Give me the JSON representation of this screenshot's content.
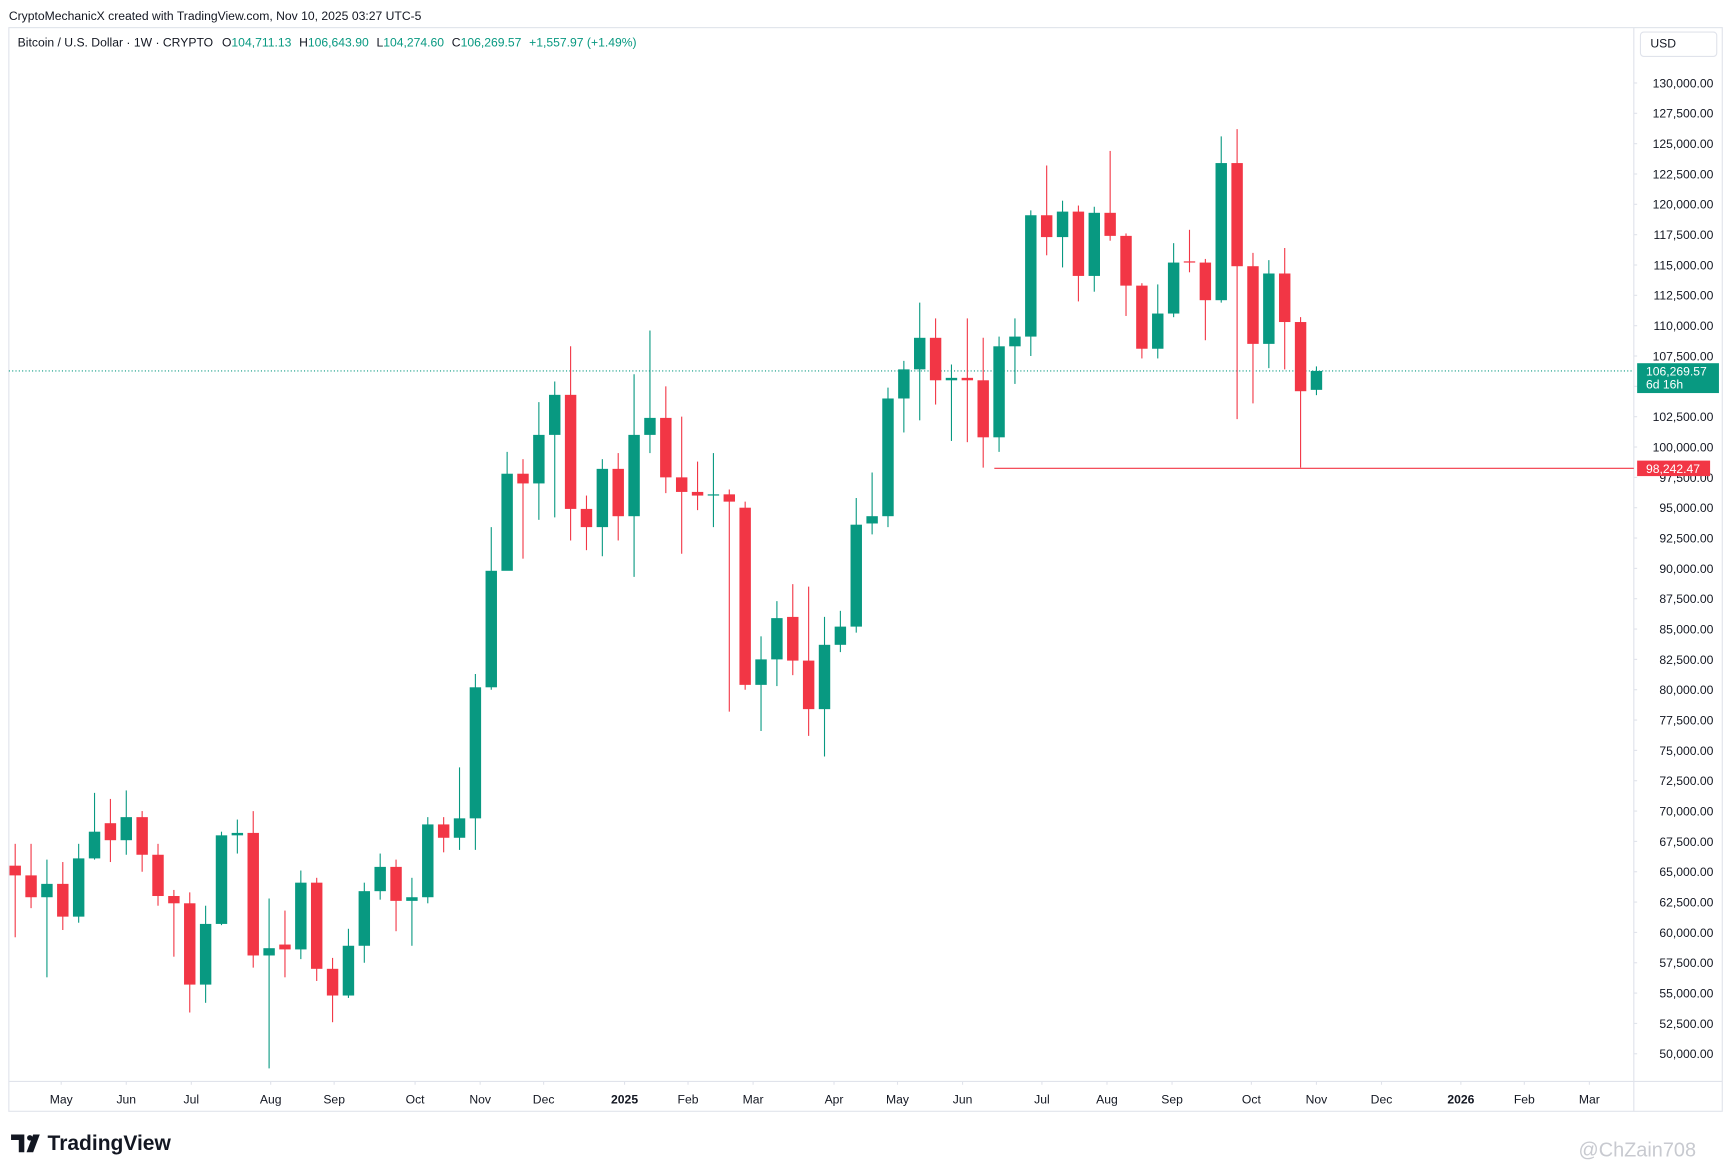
{
  "chart_data": {
    "type": "candlestick",
    "attribution": "CryptoMechanicX created with TradingView.com, Nov 10, 2025 03:27 UTC-5",
    "title": "Bitcoin / U.S. Dollar · 1W · CRYPTO",
    "legend_values": [
      {
        "label": "O",
        "value": "104,711.13"
      },
      {
        "label": "H",
        "value": "106,643.90"
      },
      {
        "label": "L",
        "value": "104,274.60"
      },
      {
        "label": "C",
        "value": "106,269.57"
      }
    ],
    "change": "+1,557.97 (+1.49%)",
    "currency": "USD",
    "logo": "TradingView",
    "watermark": "@ChZain708",
    "up_color": "#089981",
    "down_color": "#f23645",
    "categories": [
      null,
      null,
      null,
      null,
      null,
      null,
      null,
      null,
      null,
      null,
      null,
      null,
      null,
      null,
      null,
      null,
      null,
      null,
      null,
      null,
      null,
      null,
      null,
      null,
      null,
      null,
      null,
      null,
      null,
      null,
      null,
      null,
      null,
      null,
      null,
      null,
      null,
      null,
      null,
      null,
      null,
      null,
      null,
      null,
      null,
      null,
      null,
      null,
      null,
      null,
      null,
      null,
      null,
      null,
      null,
      null,
      null,
      null,
      null,
      null,
      null,
      null,
      null,
      null,
      null,
      null,
      null,
      null,
      null,
      null,
      null,
      null,
      null,
      null,
      null,
      null,
      null,
      null,
      null,
      null,
      null,
      null,
      null
    ],
    "open": [
      65500,
      64700,
      62900,
      64000,
      61300,
      66100,
      69000,
      67600,
      69500,
      66400,
      63000,
      62400,
      55700,
      60700,
      68000,
      68200,
      58100,
      59000,
      58600,
      64100,
      57000,
      54800,
      58900,
      63400,
      65400,
      62600,
      62900,
      68900,
      67800,
      69400,
      80200,
      89800,
      97800,
      97000,
      101000,
      104300,
      94900,
      93400,
      98200,
      94300,
      101000,
      102400,
      97500,
      96300,
      96000,
      96100,
      95000,
      80400,
      82500,
      86000,
      82400,
      78400,
      83700,
      85200,
      93700,
      94300,
      104000,
      106400,
      109000,
      105500,
      105700,
      105500,
      100800,
      108300,
      109100,
      119100,
      117300,
      119400,
      114100,
      119300,
      117400,
      113300,
      108100,
      111000,
      115300,
      115200,
      112100,
      123400,
      114900,
      108500,
      114300,
      110300,
      104711.13
    ],
    "high": [
      67300,
      67300,
      66000,
      65800,
      67300,
      71500,
      71000,
      71700,
      70000,
      67300,
      63500,
      63300,
      62200,
      68300,
      69300,
      70000,
      62800,
      61800,
      65100,
      64500,
      57900,
      60300,
      64100,
      66500,
      66000,
      64500,
      69500,
      69500,
      73600,
      81300,
      93400,
      99600,
      99000,
      103700,
      105400,
      108300,
      96000,
      99000,
      99500,
      106000,
      109600,
      105000,
      102500,
      98800,
      99500,
      96500,
      95500,
      84400,
      87300,
      88700,
      88500,
      86000,
      86500,
      95800,
      97900,
      104900,
      107100,
      111900,
      110600,
      106800,
      110600,
      109000,
      109100,
      110600,
      119500,
      123200,
      120300,
      119900,
      119800,
      124400,
      117600,
      113500,
      113400,
      116800,
      117900,
      115500,
      125600,
      126200,
      116000,
      115400,
      116400,
      110700,
      106643.9
    ],
    "low": [
      59600,
      62000,
      56300,
      60200,
      60800,
      66000,
      65800,
      66400,
      65000,
      62200,
      58000,
      53400,
      54200,
      60600,
      66500,
      57100,
      48800,
      56300,
      57800,
      56000,
      52600,
      54600,
      57500,
      62700,
      60100,
      58900,
      62400,
      66600,
      66800,
      66800,
      80000,
      90500,
      90800,
      94000,
      94200,
      92300,
      91500,
      91000,
      92300,
      89300,
      99500,
      96200,
      91200,
      94800,
      93400,
      78200,
      80000,
      76600,
      80300,
      81200,
      76200,
      74500,
      83100,
      84700,
      92800,
      93400,
      101200,
      102200,
      103500,
      100500,
      100400,
      98300,
      99600,
      105200,
      107500,
      115800,
      114800,
      112000,
      112800,
      117000,
      110800,
      107300,
      107300,
      110700,
      114400,
      108800,
      111900,
      102300,
      103600,
      106500,
      106400,
      98300,
      104274.6
    ],
    "close": [
      64700,
      62900,
      64000,
      61300,
      66100,
      68300,
      67600,
      69500,
      66400,
      63000,
      62400,
      55700,
      60700,
      68000,
      68200,
      58100,
      58700,
      58600,
      64100,
      57000,
      54800,
      58900,
      63400,
      65400,
      62600,
      62900,
      68900,
      67800,
      69400,
      80200,
      89800,
      97800,
      97000,
      101000,
      104300,
      94900,
      93400,
      98200,
      94300,
      101000,
      102400,
      97500,
      96300,
      96000,
      96100,
      95500,
      80400,
      82500,
      85900,
      82400,
      78400,
      83700,
      85200,
      93600,
      94300,
      104000,
      106400,
      109000,
      105500,
      105700,
      105500,
      100800,
      108300,
      109100,
      119100,
      117300,
      119400,
      114100,
      119300,
      117400,
      113300,
      108100,
      111000,
      115200,
      115200,
      112100,
      123400,
      114900,
      108500,
      114300,
      110300,
      104600,
      106269.57
    ],
    "xlim": [
      -0.4,
      102
    ],
    "xticks": [
      {
        "value": 2.9,
        "label": "May"
      },
      {
        "value": 7.0,
        "label": "Jun"
      },
      {
        "value": 11.1,
        "label": "Jul"
      },
      {
        "value": 16.1,
        "label": "Aug"
      },
      {
        "value": 20.1,
        "label": "Sep"
      },
      {
        "value": 25.2,
        "label": "Oct"
      },
      {
        "value": 29.3,
        "label": "Nov"
      },
      {
        "value": 33.3,
        "label": "Dec"
      },
      {
        "value": 38.4,
        "label": "2025"
      },
      {
        "value": 42.4,
        "label": "Feb"
      },
      {
        "value": 46.5,
        "label": "Mar"
      },
      {
        "value": 51.6,
        "label": "Apr"
      },
      {
        "value": 55.6,
        "label": "May"
      },
      {
        "value": 59.7,
        "label": "Jun"
      },
      {
        "value": 64.7,
        "label": "Jul"
      },
      {
        "value": 68.8,
        "label": "Aug"
      },
      {
        "value": 72.9,
        "label": "Sep"
      },
      {
        "value": 77.9,
        "label": "Oct"
      },
      {
        "value": 82.0,
        "label": "Nov"
      },
      {
        "value": 86.1,
        "label": "Dec"
      },
      {
        "value": 91.1,
        "label": "2026"
      },
      {
        "value": 95.1,
        "label": "Feb"
      },
      {
        "value": 99.2,
        "label": "Mar"
      }
    ],
    "ylim": [
      47720,
      134560
    ],
    "yticks": [
      {
        "value": 50000,
        "label": "50,000.00"
      },
      {
        "value": 52500,
        "label": "52,500.00"
      },
      {
        "value": 55000,
        "label": "55,000.00"
      },
      {
        "value": 57500,
        "label": "57,500.00"
      },
      {
        "value": 60000,
        "label": "60,000.00"
      },
      {
        "value": 62500,
        "label": "62,500.00"
      },
      {
        "value": 65000,
        "label": "65,000.00"
      },
      {
        "value": 67500,
        "label": "67,500.00"
      },
      {
        "value": 70000,
        "label": "70,000.00"
      },
      {
        "value": 72500,
        "label": "72,500.00"
      },
      {
        "value": 75000,
        "label": "75,000.00"
      },
      {
        "value": 77500,
        "label": "77,500.00"
      },
      {
        "value": 80000,
        "label": "80,000.00"
      },
      {
        "value": 82500,
        "label": "82,500.00"
      },
      {
        "value": 85000,
        "label": "85,000.00"
      },
      {
        "value": 87500,
        "label": "87,500.00"
      },
      {
        "value": 90000,
        "label": "90,000.00"
      },
      {
        "value": 92500,
        "label": "92,500.00"
      },
      {
        "value": 95000,
        "label": "95,000.00"
      },
      {
        "value": 97500,
        "label": "97,500.00"
      },
      {
        "value": 100000,
        "label": "100,000.00"
      },
      {
        "value": 102500,
        "label": "102,500.00"
      },
      {
        "value": 105000,
        "label": "105,000.00"
      },
      {
        "value": 107500,
        "label": "107,500.00"
      },
      {
        "value": 110000,
        "label": "110,000.00"
      },
      {
        "value": 112500,
        "label": "112,500.00"
      },
      {
        "value": 115000,
        "label": "115,000.00"
      },
      {
        "value": 117500,
        "label": "117,500.00"
      },
      {
        "value": 120000,
        "label": "120,000.00"
      },
      {
        "value": 122500,
        "label": "122,500.00"
      },
      {
        "value": 125000,
        "label": "125,000.00"
      },
      {
        "value": 127500,
        "label": "127,500.00"
      },
      {
        "value": 130000,
        "label": "130,000.00"
      }
    ],
    "grid": false,
    "last_price": {
      "value": 106269.57,
      "label": "106,269.57",
      "countdown": "6d 16h",
      "color": "#089981"
    },
    "levels": [
      {
        "value": 98242.47,
        "label": "98,242.47",
        "start": 61.7,
        "color": "#f23645"
      }
    ]
  }
}
